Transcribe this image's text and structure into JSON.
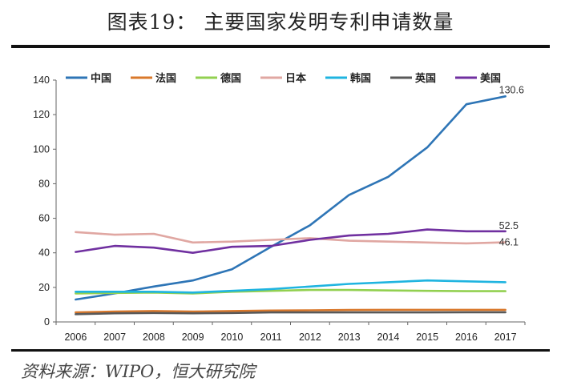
{
  "title": "图表19：  主要国家发明专利申请数量",
  "source": "资料来源：WIPO，恒大研究院",
  "chart_data": {
    "type": "line",
    "x": [
      2006,
      2007,
      2008,
      2009,
      2010,
      2011,
      2012,
      2013,
      2014,
      2015,
      2016,
      2017
    ],
    "xlabel": "",
    "ylabel": "",
    "ylim": [
      0,
      140
    ],
    "yticks": [
      0,
      20,
      40,
      60,
      80,
      100,
      120,
      140
    ],
    "grid": false,
    "legend_position": "top",
    "series": [
      {
        "name": "中国",
        "color": "#2e75b6",
        "values": [
          13,
          16.5,
          20.5,
          24,
          30.5,
          43.5,
          56,
          73.5,
          84,
          101,
          126,
          130.6
        ],
        "end_label": "130.6"
      },
      {
        "name": "法国",
        "color": "#d9782b",
        "values": [
          5.5,
          6,
          6.3,
          6,
          6.3,
          6.6,
          6.7,
          6.9,
          7,
          7,
          7,
          7
        ]
      },
      {
        "name": "德国",
        "color": "#92d050",
        "values": [
          16.5,
          16.8,
          17,
          16.5,
          17.5,
          18,
          18.5,
          18.5,
          18.2,
          18,
          17.8,
          17.8
        ]
      },
      {
        "name": "日本",
        "color": "#e0a7a2",
        "values": [
          52,
          50.5,
          51,
          46,
          46.5,
          47.5,
          48.5,
          47,
          46.5,
          46,
          45.5,
          46.1
        ],
        "end_label": "46.1"
      },
      {
        "name": "韩国",
        "color": "#1fb4e0",
        "values": [
          17.5,
          17.5,
          17.5,
          17,
          18,
          19,
          20.5,
          22,
          23,
          24,
          23.5,
          23
        ]
      },
      {
        "name": "英国",
        "color": "#595959",
        "values": [
          4.5,
          5,
          5.2,
          5,
          5.2,
          5.5,
          5.5,
          5.5,
          5.5,
          5.5,
          5.6,
          5.6
        ]
      },
      {
        "name": "美国",
        "color": "#7030a0",
        "values": [
          40.5,
          44,
          43,
          40,
          43.5,
          44,
          47.5,
          50,
          51,
          53.5,
          52.5,
          52.5
        ],
        "end_label": "52.5"
      }
    ]
  }
}
